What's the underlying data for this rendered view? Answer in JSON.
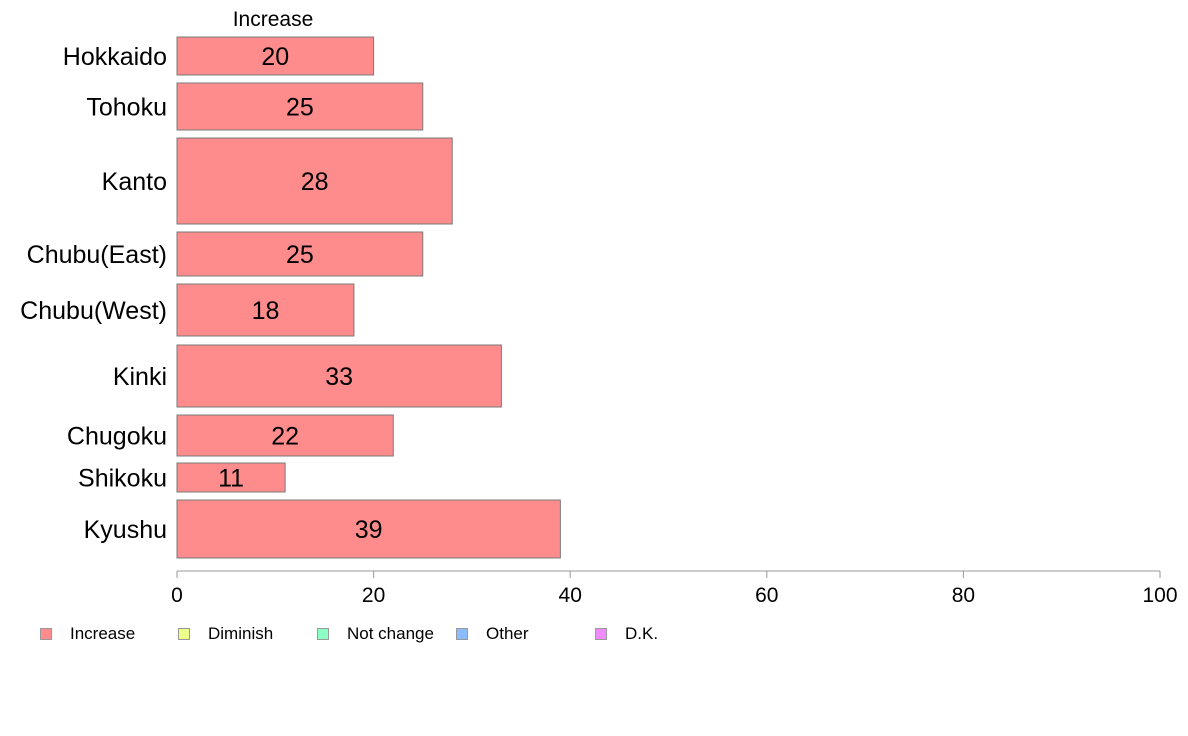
{
  "chart_data": {
    "type": "bar",
    "orientation": "horizontal",
    "title": "",
    "column_title": "Increase",
    "categories": [
      "Hokkaido",
      "Tohoku",
      "Kanto",
      "Chubu(East)",
      "Chubu(West)",
      "Kinki",
      "Chugoku",
      "Shikoku",
      "Kyushu"
    ],
    "series": [
      {
        "name": "Increase",
        "values": [
          20,
          25,
          28,
          25,
          18,
          33,
          22,
          11,
          39
        ]
      }
    ],
    "data_labels": [
      "20",
      "25",
      "28",
      "25",
      "18",
      "33",
      "22",
      "11",
      "39"
    ],
    "xlim": [
      0,
      100
    ],
    "x_ticks": [
      "0",
      "20",
      "40",
      "60",
      "80",
      "100"
    ],
    "grid": false,
    "legend_placement": "bottom-left",
    "legend": [
      {
        "label": "Increase",
        "color": "#ff8c8c"
      },
      {
        "label": "Diminish",
        "color": "#eeff8c"
      },
      {
        "label": "Not change",
        "color": "#8cffc4"
      },
      {
        "label": "Other",
        "color": "#8cbcff"
      },
      {
        "label": "D.K.",
        "color": "#f08cff"
      }
    ],
    "bar_color": "#ff8c8c",
    "bar_edge_color": "#7a7a7a",
    "axis_color": "#999999"
  }
}
